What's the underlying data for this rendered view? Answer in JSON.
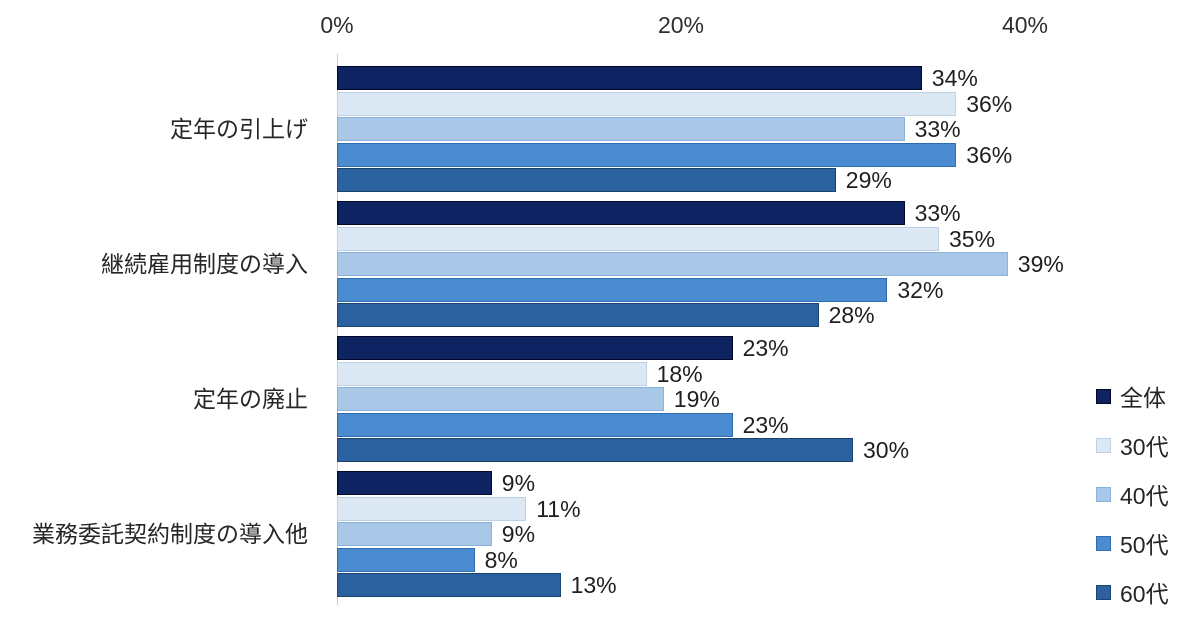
{
  "chart_data": {
    "type": "bar",
    "orientation": "horizontal",
    "title": "",
    "categories": [
      "定年の引上げ",
      "継続雇用制度の導入",
      "定年の廃止",
      "業務委託契約制度の導入他"
    ],
    "series": [
      {
        "name": "全体",
        "color": "#0E2362",
        "border_color": "#000A28",
        "values": [
          34,
          33,
          23,
          9
        ]
      },
      {
        "name": "30代",
        "color": "#DDE8F5",
        "border_color": "#BDD0E8",
        "values": [
          36,
          35,
          18,
          11
        ]
      },
      {
        "name": "40代",
        "color": "#A9C7E7",
        "border_color": "#8AB1D8",
        "values": [
          33,
          39,
          19,
          9
        ]
      },
      {
        "name": "50代",
        "color": "#4B8CD1",
        "border_color": "#2E6CB0",
        "values": [
          36,
          32,
          23,
          8
        ]
      },
      {
        "name": "60代",
        "color": "#2C619F",
        "border_color": "#1B4370",
        "values": [
          29,
          28,
          30,
          13
        ]
      }
    ],
    "x_axis": {
      "position": "top",
      "ticks": [
        "0%",
        "20%",
        "40%"
      ],
      "tick_values": [
        0,
        20,
        40
      ],
      "min": 0,
      "max": 40
    },
    "value_label_format": "{v}%",
    "legend_position": "right",
    "grid": false,
    "background_color": "#FFFFFF",
    "text_color": "#1F1F1F",
    "axis_line_color": "#C9C9C9"
  },
  "layout_note": ""
}
